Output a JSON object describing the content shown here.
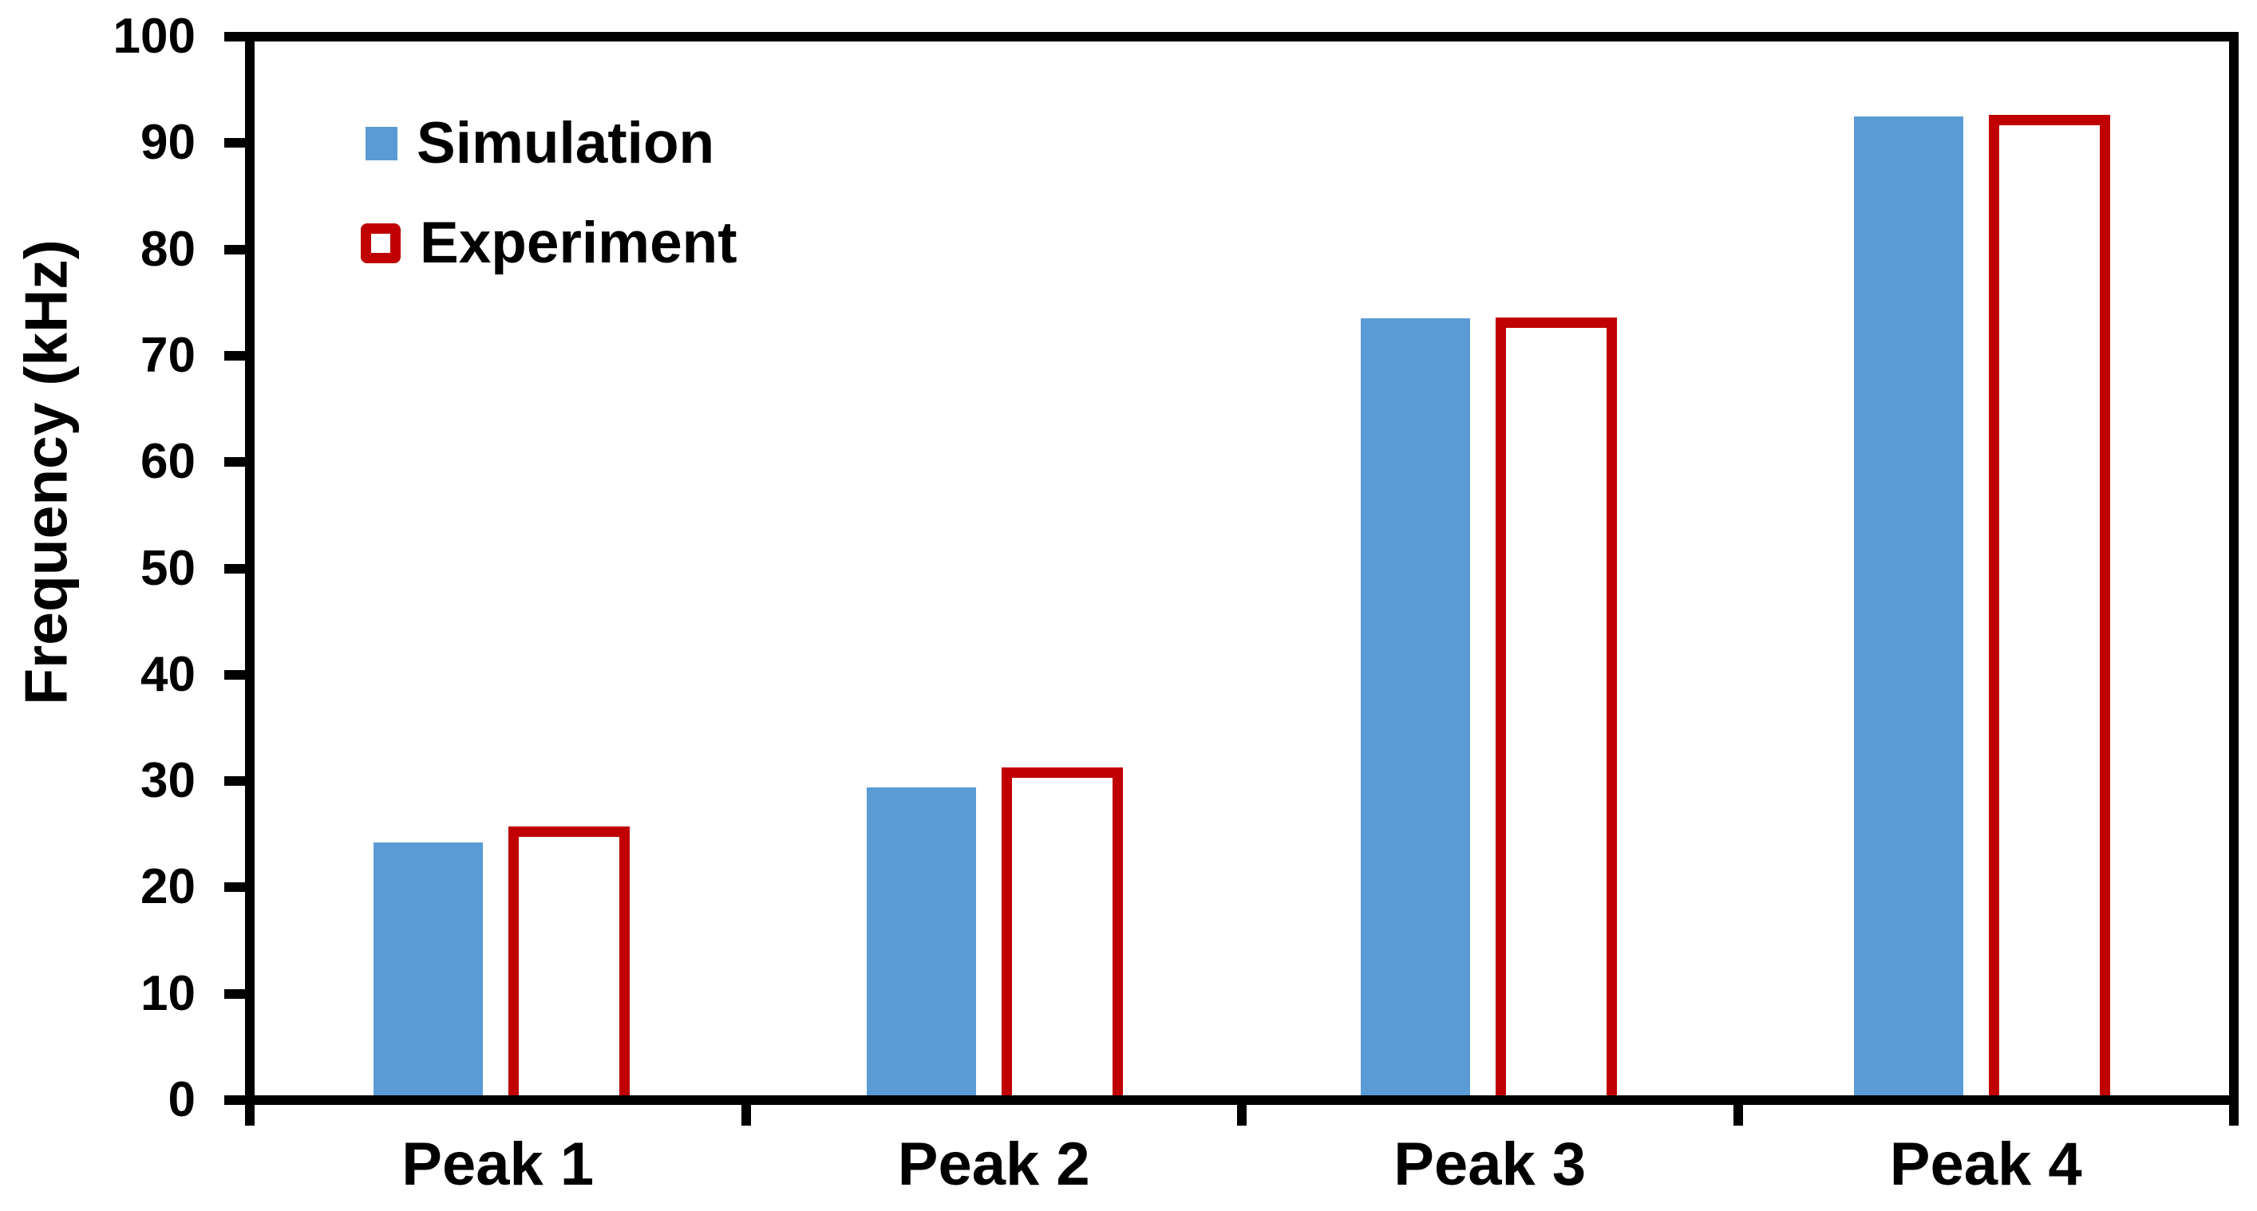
{
  "figure": {
    "background": "#FFFFFF",
    "frame_color": "#000000"
  },
  "legend": {
    "items": [
      {
        "label": "Simulation",
        "marker": "filled-square-icon",
        "color": "#5B9BD5"
      },
      {
        "label": "Experiment",
        "marker": "outlined-square-icon",
        "color": "#C00000"
      }
    ]
  },
  "chart_data": {
    "type": "bar",
    "title": "",
    "xlabel": "",
    "ylabel": "Frequency (kHz)",
    "categories": [
      "Peak 1",
      "Peak 2",
      "Peak 3",
      "Peak 4"
    ],
    "series": [
      {
        "name": "Simulation",
        "style": "filled",
        "color": "#5B9BD5",
        "values": [
          24.0,
          29.2,
          73.7,
          92.9
        ]
      },
      {
        "name": "Experiment",
        "style": "outlined",
        "color": "#C00000",
        "values": [
          25.5,
          31.1,
          73.8,
          93.0
        ]
      }
    ],
    "ylim": [
      0,
      100
    ],
    "yticks": [
      0,
      10,
      20,
      30,
      40,
      50,
      60,
      70,
      80,
      90,
      100
    ],
    "grid": false,
    "legend_position": "top-left-inside"
  }
}
